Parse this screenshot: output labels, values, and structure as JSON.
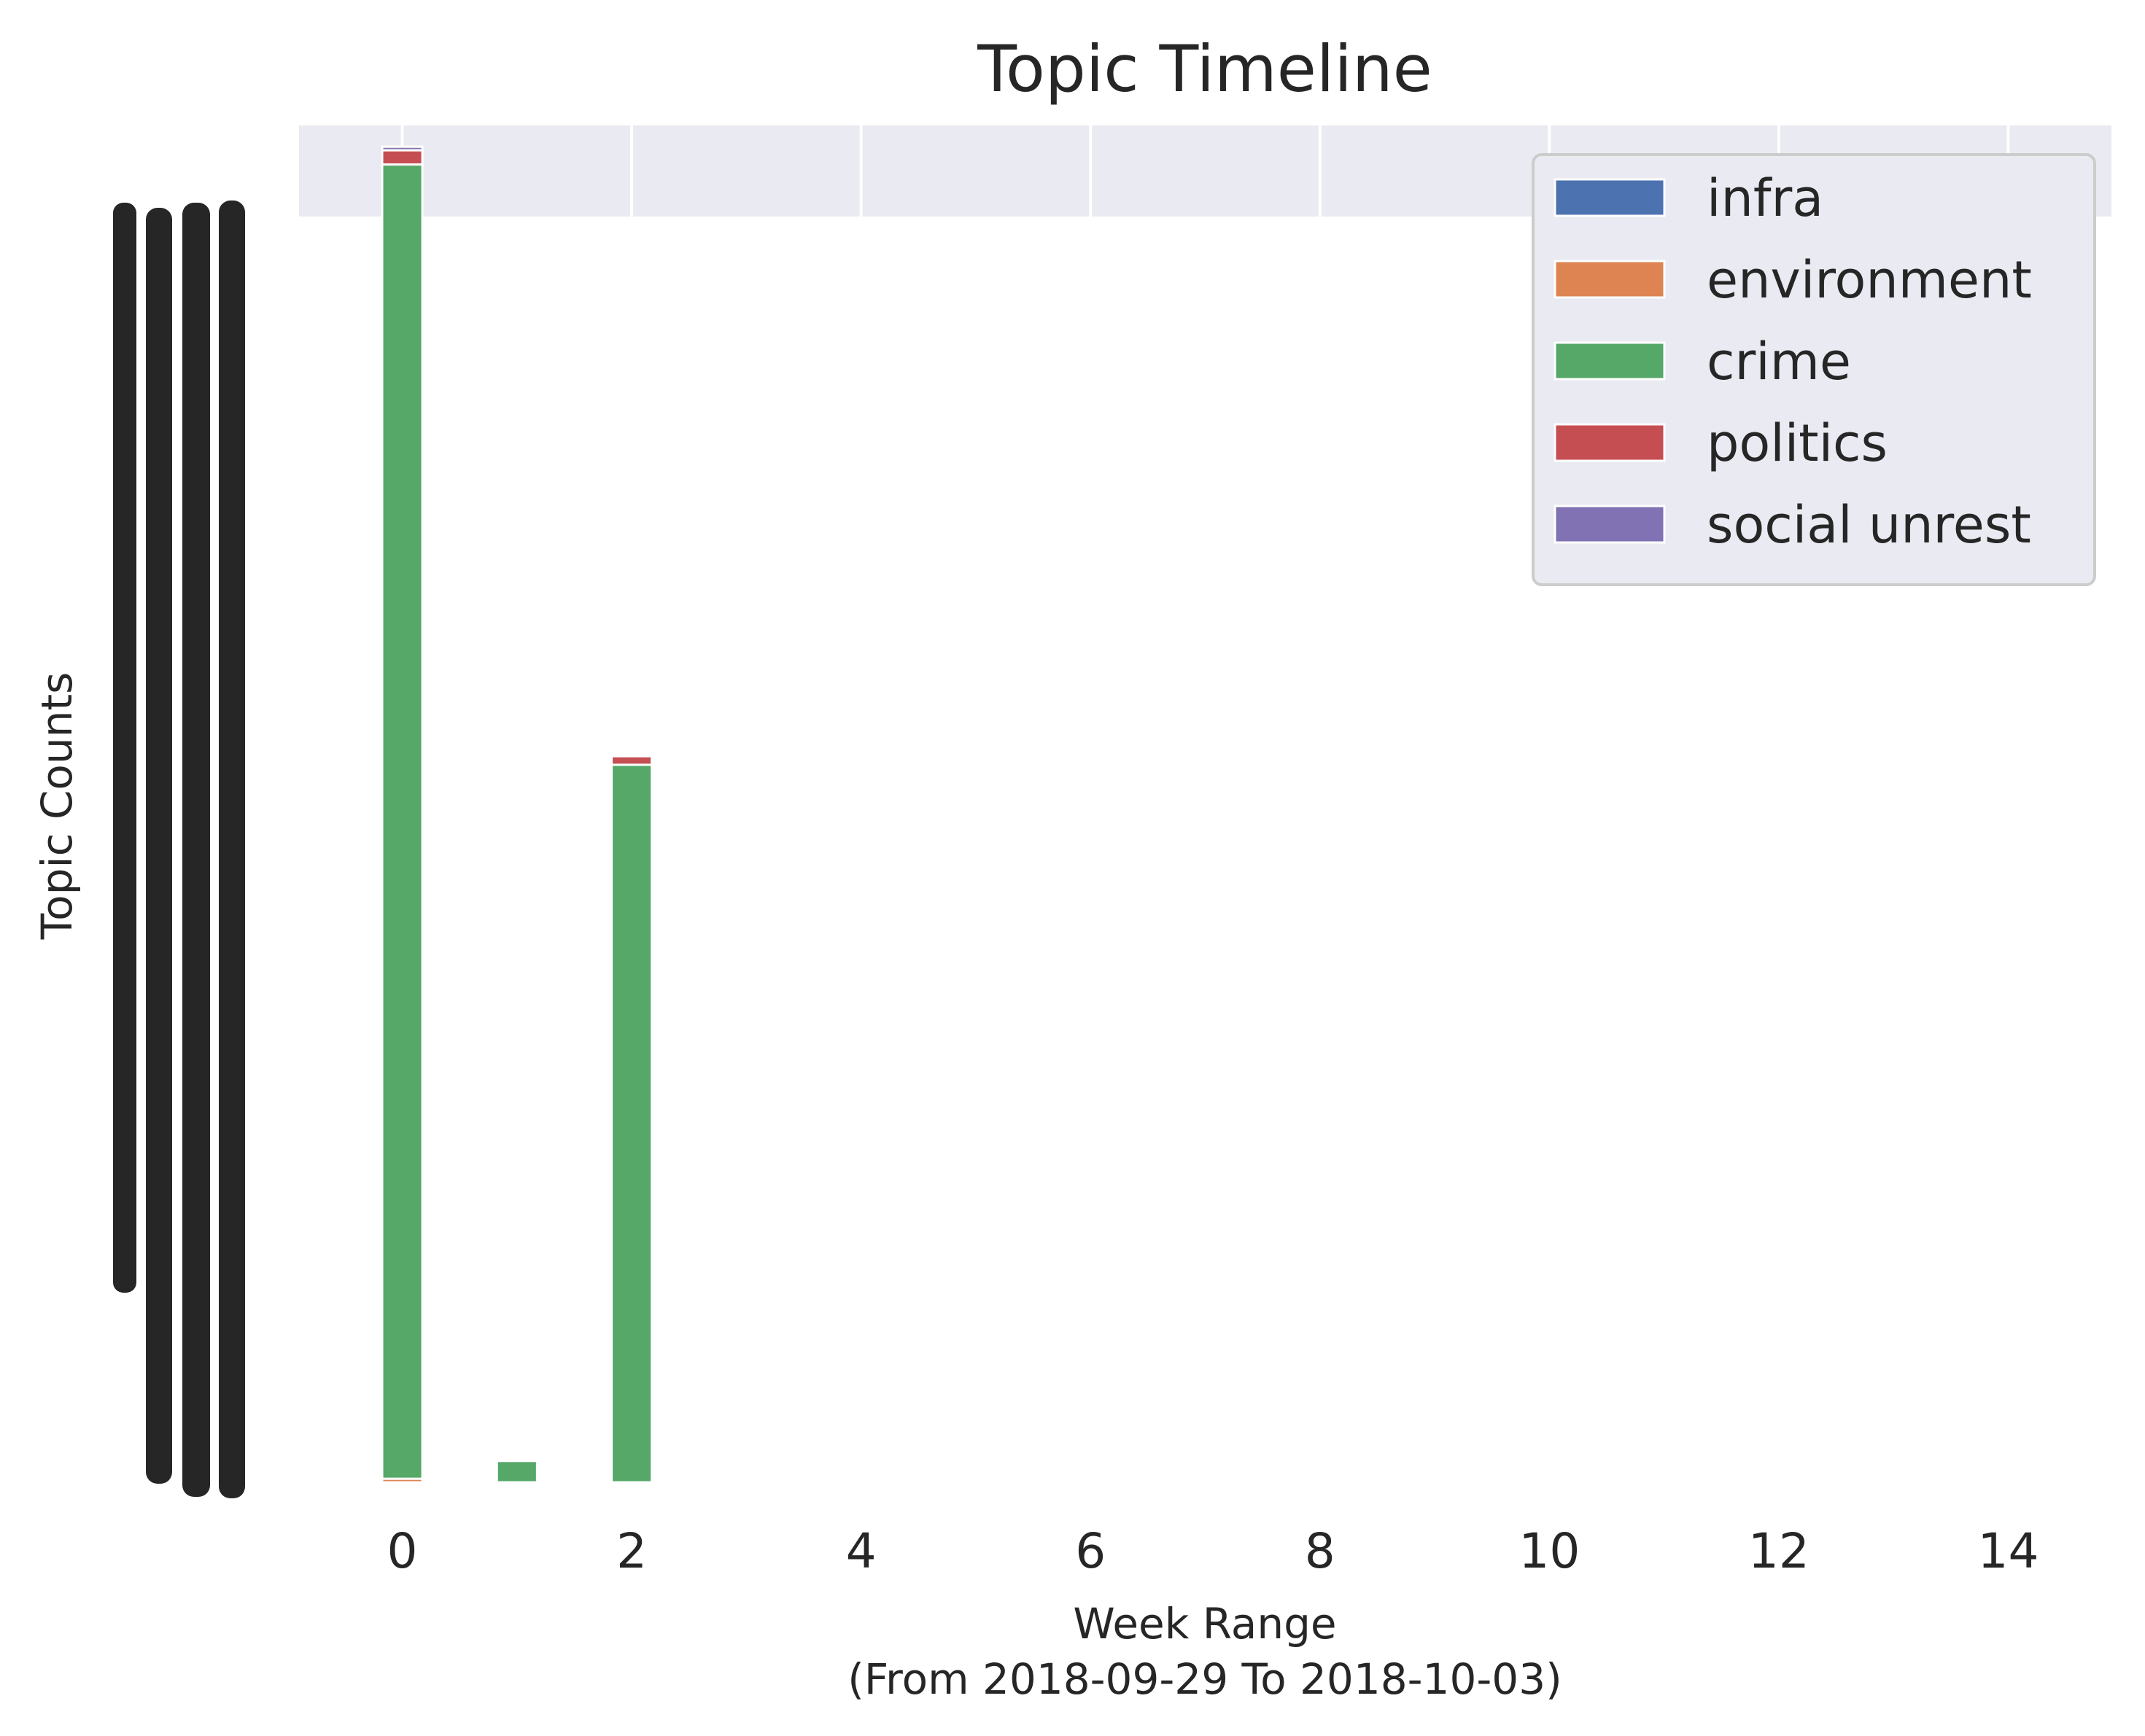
{
  "chart_data": {
    "type": "bar",
    "stacked": true,
    "title": "Topic Timeline",
    "xlabel": "Week Range",
    "xlabel_sub": "(From 2018-09-29 To 2018-10-03)",
    "ylabel": "Topic Counts",
    "xlim": [
      -0.9,
      14.9
    ],
    "ylim": [
      0,
      19.1
    ],
    "xticks": [
      "0",
      "2",
      "4",
      "6",
      "8",
      "10",
      "12",
      "14"
    ],
    "x": [
      0,
      1,
      2
    ],
    "legend_position": "upper right",
    "grid": true,
    "series": [
      {
        "name": "infra",
        "color": "#4c72b0",
        "values": [
          0,
          0,
          0
        ]
      },
      {
        "name": "environment",
        "color": "#dd8452",
        "values": [
          0.05,
          0,
          0
        ]
      },
      {
        "name": "crime",
        "color": "#55a868",
        "values": [
          18.5,
          0.3,
          10.1
        ]
      },
      {
        "name": "politics",
        "color": "#c44e52",
        "values": [
          0.2,
          0,
          0.12
        ]
      },
      {
        "name": "social unrest",
        "color": "#8172b3",
        "values": [
          0.05,
          0,
          0
        ]
      }
    ]
  }
}
